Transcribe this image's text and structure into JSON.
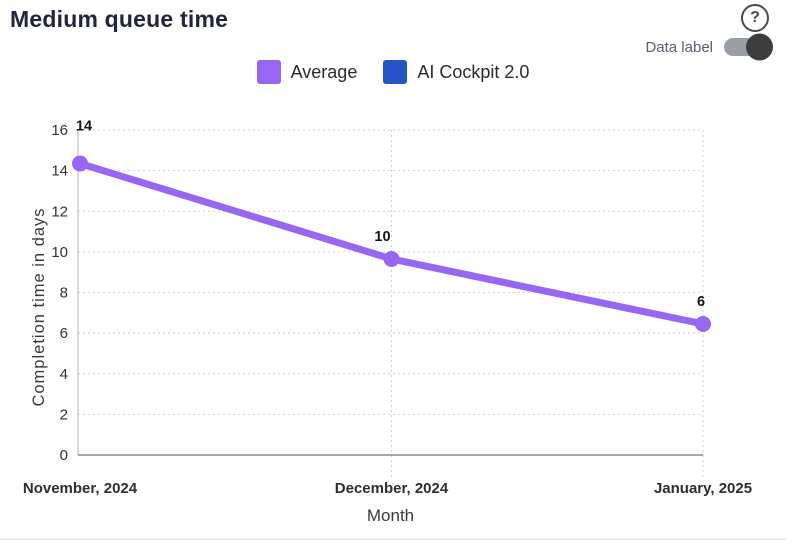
{
  "header": {
    "title": "Medium queue time"
  },
  "controls": {
    "help_icon": "?",
    "data_label_toggle": {
      "label": "Data label",
      "state": "on"
    }
  },
  "chart_data": {
    "type": "line",
    "title": "Medium queue time",
    "xlabel": "Month",
    "ylabel": "Completion time in days",
    "categories": [
      "November, 2024",
      "December, 2024",
      "January, 2025"
    ],
    "series": [
      {
        "name": "Average",
        "color": "#9766F2",
        "values": [
          14.35,
          9.65,
          6.45
        ],
        "data_labels": [
          "14",
          "10",
          "6"
        ]
      },
      {
        "name": "AI Cockpit 2.0",
        "color": "#2653C5",
        "values": [],
        "data_labels": []
      }
    ],
    "ylim": [
      0,
      16
    ],
    "ytick_step": 2,
    "grid": "dotted",
    "legend_position": "top-center",
    "axis_text_color": "#333333",
    "data_label_color": "#151515"
  }
}
